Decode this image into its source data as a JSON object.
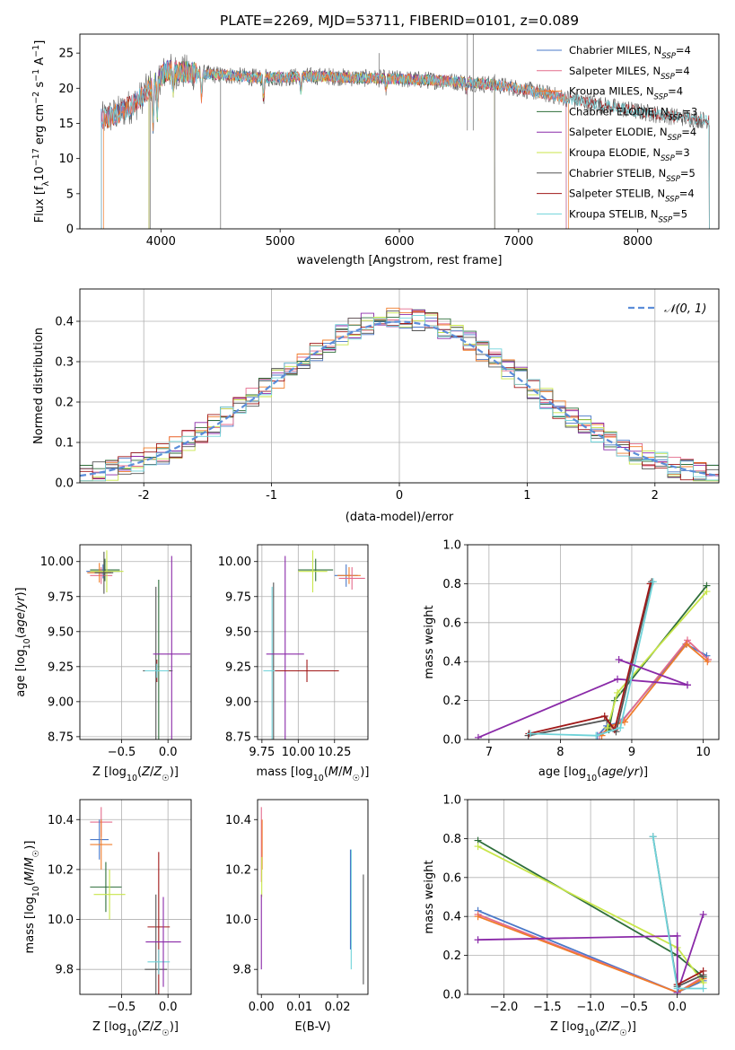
{
  "chart_data": [
    {
      "id": "spectrum",
      "type": "line",
      "title": "PLATE=2269, MJD=53711, FIBERID=0101, z=0.089",
      "xlabel": "wavelength [Angstrom, rest frame]",
      "ylabel_parts": [
        "Flux [f",
        "λ",
        "10",
        "−17",
        " erg cm",
        "−2",
        " s",
        "−1",
        " A",
        "−1",
        "]"
      ],
      "xlim": [
        3320,
        8680
      ],
      "ylim": [
        0,
        27.7
      ],
      "xticks": [
        4000,
        5000,
        6000,
        7000,
        8000
      ],
      "yticks": [
        0,
        5,
        10,
        15,
        20,
        25
      ],
      "grid": false,
      "legend_placement": "top-right",
      "continuum_shape": {
        "x": [
          3500,
          3650,
          3800,
          3950,
          4050,
          4200,
          4400,
          4600,
          4800,
          5000,
          5200,
          5400,
          5600,
          5800,
          6000,
          6200,
          6400,
          6600,
          6800,
          7000,
          7200,
          7400,
          7600,
          7800,
          8000,
          8200,
          8400,
          8550
        ],
        "y": [
          15.5,
          16.5,
          18.0,
          21.0,
          22.5,
          22.3,
          22.0,
          21.8,
          21.5,
          21.5,
          21.7,
          21.7,
          21.5,
          21.4,
          21.3,
          21.2,
          21.0,
          20.8,
          20.5,
          20.0,
          19.3,
          18.6,
          17.9,
          17.3,
          16.7,
          16.2,
          15.8,
          15.5
        ]
      },
      "series": [
        {
          "name": "Chabrier MILES, N",
          "sub": "SSP",
          "suffix": "=4",
          "color": "#4a78c8",
          "xmin": 3500,
          "xmax": 7400
        },
        {
          "name": "Salpeter MILES, N",
          "sub": "SSP",
          "suffix": "=4",
          "color": "#e46b8c",
          "xmin": 3500,
          "xmax": 7400
        },
        {
          "name": "Kroupa MILES, N",
          "sub": "SSP",
          "suffix": "=4",
          "color": "#f07c2a",
          "xmin": 3520,
          "xmax": 7420
        },
        {
          "name": "Chabrier ELODIE, N",
          "sub": "SSP",
          "suffix": "=3",
          "color": "#2e6e3a",
          "xmin": 3900,
          "xmax": 6800
        },
        {
          "name": "Salpeter ELODIE, N",
          "sub": "SSP",
          "suffix": "=4",
          "color": "#8a2aa8",
          "xmin": 3900,
          "xmax": 6800
        },
        {
          "name": "Kroupa ELODIE, N",
          "sub": "SSP",
          "suffix": "=3",
          "color": "#c8e64a",
          "xmin": 3900,
          "xmax": 6800
        },
        {
          "name": "Chabrier STELIB, N",
          "sub": "SSP",
          "suffix": "=5",
          "color": "#555555",
          "xmin": 3500,
          "xmax": 8600
        },
        {
          "name": "Salpeter STELIB, N",
          "sub": "SSP",
          "suffix": "=4",
          "color": "#a01818",
          "xmin": 3500,
          "xmax": 8600
        },
        {
          "name": "Kroupa STELIB, N",
          "sub": "SSP",
          "suffix": "=5",
          "color": "#6fd3d9",
          "xmin": 3500,
          "xmax": 8600
        }
      ]
    },
    {
      "id": "residuals",
      "type": "bar",
      "xlabel": "(data-model)/error",
      "ylabel": "Normed distribution",
      "xlim": [
        -2.5,
        2.5
      ],
      "ylim": [
        0,
        0.48
      ],
      "xticks": [
        -2,
        -1,
        0,
        1,
        2
      ],
      "yticks": [
        0.0,
        0.1,
        0.2,
        0.3,
        0.4
      ],
      "grid": true,
      "legend_placement": "top-right",
      "reference_curve": {
        "name": "𝒩(0, 1)",
        "mean": 0,
        "sigma": 1,
        "color": "#5b8dd9",
        "dashed": true
      },
      "bin_width": 0.1
    },
    {
      "id": "age_vs_Z",
      "type": "scatter",
      "xlabel": "Z [log10(Z/Z☉)]",
      "ylabel": "age  [log10(age/yr)]",
      "xlim": [
        -0.95,
        0.25
      ],
      "ylim": [
        8.73,
        10.12
      ],
      "xticks": [
        -0.5,
        0.0
      ],
      "xtick_labels": [
        "−0.5",
        "0.0"
      ],
      "yticks": [
        8.75,
        9.0,
        9.25,
        9.5,
        9.75,
        10.0
      ],
      "grid": true,
      "points": [
        {
          "x": -0.68,
          "y": 9.94,
          "xerr": 0.16,
          "yerr": 0.08,
          "color": "#2e6e3a"
        },
        {
          "x": -0.7,
          "y": 9.93,
          "xerr": 0.18,
          "yerr": 0.05,
          "color": "#4a78c8"
        },
        {
          "x": -0.72,
          "y": 9.9,
          "xerr": 0.12,
          "yerr": 0.06,
          "color": "#e46b8c"
        },
        {
          "x": -0.74,
          "y": 9.92,
          "xerr": 0.13,
          "yerr": 0.07,
          "color": "#f07c2a"
        },
        {
          "x": -0.66,
          "y": 9.93,
          "xerr": 0.18,
          "yerr": 0.15,
          "color": "#c8e64a"
        },
        {
          "x": -0.69,
          "y": 9.92,
          "xerr": 0.1,
          "yerr": 0.15,
          "color": "#555555"
        },
        {
          "x": -0.1,
          "y": 9.22,
          "xerr": 0.15,
          "yerr": 0.65,
          "color": "#2e6e3a"
        },
        {
          "x": -0.12,
          "y": 9.22,
          "xerr": 0.14,
          "yerr": 0.08,
          "color": "#a01818"
        },
        {
          "x": -0.13,
          "y": 9.22,
          "xerr": 0.14,
          "yerr": 0.6,
          "color": "#555555"
        },
        {
          "x": -0.12,
          "y": 9.22,
          "xerr": 0.13,
          "yerr": 0.05,
          "color": "#6fd3d9"
        },
        {
          "x": 0.04,
          "y": 9.34,
          "xerr": 0.2,
          "yerr": 0.7,
          "color": "#8a2aa8"
        }
      ]
    },
    {
      "id": "age_vs_mass",
      "type": "scatter",
      "xlabel": "mass [log10(M/M☉)]",
      "ylabel": "",
      "xlim": [
        9.72,
        10.48
      ],
      "ylim": [
        8.73,
        10.12
      ],
      "xticks": [
        9.75,
        10.0,
        10.25
      ],
      "yticks": [
        8.75,
        9.0,
        9.25,
        9.5,
        9.75,
        10.0
      ],
      "grid": true,
      "points": [
        {
          "x": 10.12,
          "y": 9.94,
          "xerr": 0.12,
          "yerr": 0.08,
          "color": "#2e6e3a"
        },
        {
          "x": 10.1,
          "y": 9.93,
          "xerr": 0.1,
          "yerr": 0.15,
          "color": "#c8e64a"
        },
        {
          "x": 10.33,
          "y": 9.9,
          "xerr": 0.08,
          "yerr": 0.08,
          "color": "#4a78c8"
        },
        {
          "x": 10.35,
          "y": 9.9,
          "xerr": 0.08,
          "yerr": 0.06,
          "color": "#f07c2a"
        },
        {
          "x": 10.37,
          "y": 9.88,
          "xerr": 0.09,
          "yerr": 0.08,
          "color": "#e46b8c"
        },
        {
          "x": 9.83,
          "y": 9.22,
          "xerr": 0.06,
          "yerr": 0.63,
          "color": "#555555"
        },
        {
          "x": 9.82,
          "y": 9.22,
          "xerr": 0.06,
          "yerr": 0.6,
          "color": "#6fd3d9"
        },
        {
          "x": 9.91,
          "y": 9.34,
          "xerr": 0.13,
          "yerr": 0.7,
          "color": "#8a2aa8"
        },
        {
          "x": 10.06,
          "y": 9.22,
          "xerr": 0.22,
          "yerr": 0.08,
          "color": "#a01818"
        }
      ]
    },
    {
      "id": "mass_weight_vs_age",
      "type": "line",
      "xlabel": "age  [log10(age/yr)]",
      "ylabel": "mass weight",
      "xlim": [
        6.7,
        10.22
      ],
      "ylim": [
        0,
        1
      ],
      "xticks": [
        7,
        8,
        9,
        10
      ],
      "yticks": [
        0.0,
        0.2,
        0.4,
        0.6,
        0.8,
        1.0
      ],
      "grid": true,
      "series": [
        {
          "color": "#4a78c8",
          "x": [
            8.52,
            8.65,
            8.85,
            9.76,
            10.05
          ],
          "y": [
            0.02,
            0.07,
            0.09,
            0.49,
            0.43
          ]
        },
        {
          "color": "#e46b8c",
          "x": [
            8.55,
            8.68,
            8.88,
            9.78,
            10.07
          ],
          "y": [
            0.02,
            0.06,
            0.1,
            0.51,
            0.41
          ]
        },
        {
          "color": "#f07c2a",
          "x": [
            8.58,
            8.7,
            8.9,
            9.77,
            10.06
          ],
          "y": [
            0.02,
            0.07,
            0.09,
            0.49,
            0.4
          ]
        },
        {
          "color": "#2e6e3a",
          "x": [
            8.68,
            8.76,
            10.05
          ],
          "y": [
            0.05,
            0.2,
            0.79
          ]
        },
        {
          "color": "#8a2aa8",
          "x": [
            6.85,
            8.8,
            9.78
          ],
          "y": [
            0.01,
            0.31,
            0.28
          ]
        },
        {
          "color": "#c8e64a",
          "x": [
            8.66,
            8.8,
            10.05
          ],
          "y": [
            0.06,
            0.24,
            0.76
          ]
        },
        {
          "color": "#555555",
          "x": [
            7.55,
            8.65,
            8.78,
            9.28
          ],
          "y": [
            0.02,
            0.1,
            0.04,
            0.81
          ]
        },
        {
          "color": "#a01818",
          "x": [
            7.56,
            8.62,
            8.76,
            9.26
          ],
          "y": [
            0.03,
            0.12,
            0.05,
            0.8
          ]
        },
        {
          "color": "#6fd3d9",
          "x": [
            7.58,
            8.5,
            8.84,
            9.3
          ],
          "y": [
            0.03,
            0.02,
            0.06,
            0.81
          ]
        },
        {
          "color": "#8a2aa8",
          "x": [
            8.82,
            9.78
          ],
          "y": [
            0.41,
            0.28
          ]
        }
      ]
    },
    {
      "id": "mass_vs_Z",
      "type": "scatter",
      "xlabel": "Z [log10(Z/Z☉)]",
      "ylabel": "mass [log10(M/M☉)]",
      "xlim": [
        -0.95,
        0.25
      ],
      "ylim": [
        9.7,
        10.48
      ],
      "xticks": [
        -0.5,
        0.0
      ],
      "xtick_labels": [
        "−0.5",
        "0.0"
      ],
      "yticks": [
        9.8,
        10.0,
        10.2,
        10.4
      ],
      "grid": true,
      "points": [
        {
          "x": -0.72,
          "y": 10.39,
          "xerr": 0.12,
          "yerr": 0.06,
          "color": "#e46b8c"
        },
        {
          "x": -0.74,
          "y": 10.32,
          "xerr": 0.1,
          "yerr": 0.08,
          "color": "#4a78c8"
        },
        {
          "x": -0.72,
          "y": 10.3,
          "xerr": 0.12,
          "yerr": 0.1,
          "color": "#f07c2a"
        },
        {
          "x": -0.67,
          "y": 10.13,
          "xerr": 0.17,
          "yerr": 0.1,
          "color": "#2e6e3a"
        },
        {
          "x": -0.63,
          "y": 10.1,
          "xerr": 0.17,
          "yerr": 0.1,
          "color": "#c8e64a"
        },
        {
          "x": -0.1,
          "y": 9.97,
          "xerr": 0.12,
          "yerr": 0.3,
          "color": "#a01818"
        },
        {
          "x": -0.13,
          "y": 9.8,
          "xerr": 0.12,
          "yerr": 0.3,
          "color": "#555555"
        },
        {
          "x": -0.1,
          "y": 9.83,
          "xerr": 0.12,
          "yerr": 0.05,
          "color": "#6fd3d9"
        },
        {
          "x": -0.05,
          "y": 9.91,
          "xerr": 0.19,
          "yerr": 0.18,
          "color": "#8a2aa8"
        }
      ]
    },
    {
      "id": "mass_vs_EBV",
      "type": "scatter",
      "xlabel": "E(B-V)",
      "ylabel": "",
      "xlim": [
        -0.001,
        0.028
      ],
      "ylim": [
        9.7,
        10.48
      ],
      "xticks": [
        0.0,
        0.01,
        0.02
      ],
      "xtick_labels": [
        "0.00",
        "0.01",
        "0.02"
      ],
      "yticks": [
        9.8,
        10.0,
        10.2,
        10.4
      ],
      "grid": false,
      "points": [
        {
          "x": 0.0,
          "y": 10.3,
          "xerr": 0,
          "yerr": 0.15,
          "color": "#e46b8c"
        },
        {
          "x": 0.0002,
          "y": 10.3,
          "xerr": 0,
          "yerr": 0.1,
          "color": "#f07c2a"
        },
        {
          "x": 0.0001,
          "y": 10.17,
          "xerr": 0,
          "yerr": 0.08,
          "color": "#c8e64a"
        },
        {
          "x": 0.0,
          "y": 9.95,
          "xerr": 0,
          "yerr": 0.15,
          "color": "#8a2aa8"
        },
        {
          "x": 0.0236,
          "y": 10.04,
          "xerr": 0,
          "yerr": 0.24,
          "color": "#6fd3d9"
        },
        {
          "x": 0.0234,
          "y": 10.08,
          "xerr": 0,
          "yerr": 0.2,
          "color": "#4a78c8"
        },
        {
          "x": 0.0268,
          "y": 9.96,
          "xerr": 0,
          "yerr": 0.22,
          "color": "#555555"
        }
      ]
    },
    {
      "id": "mass_weight_vs_Z",
      "type": "line",
      "xlabel": "Z [log10(Z/Z☉)]",
      "ylabel": "mass weight",
      "xlim": [
        -2.42,
        0.48
      ],
      "ylim": [
        0,
        1
      ],
      "xticks": [
        -2.0,
        -1.5,
        -1.0,
        -0.5,
        0.0
      ],
      "xtick_labels": [
        "−2.0",
        "−1.5",
        "−1.0",
        "−0.5",
        "0.0"
      ],
      "yticks": [
        0.0,
        0.2,
        0.4,
        0.6,
        0.8,
        1.0
      ],
      "grid": true,
      "series": [
        {
          "color": "#4a78c8",
          "x": [
            -2.3,
            0.0,
            0.3
          ],
          "y": [
            0.43,
            0.01,
            0.07
          ]
        },
        {
          "color": "#e46b8c",
          "x": [
            -2.3,
            0.0,
            0.3
          ],
          "y": [
            0.41,
            0.01,
            0.09
          ]
        },
        {
          "color": "#f07c2a",
          "x": [
            -2.3,
            0.0,
            0.3
          ],
          "y": [
            0.4,
            0.01,
            0.08
          ]
        },
        {
          "color": "#2e6e3a",
          "x": [
            -2.3,
            0.0,
            0.3
          ],
          "y": [
            0.79,
            0.2,
            0.09
          ]
        },
        {
          "color": "#c8e64a",
          "x": [
            -2.3,
            0.0,
            0.3
          ],
          "y": [
            0.76,
            0.24,
            0.06
          ]
        },
        {
          "color": "#8a2aa8",
          "x": [
            -2.3,
            0.0,
            0.0,
            0.3
          ],
          "y": [
            0.28,
            0.3,
            0.01,
            0.41
          ]
        },
        {
          "color": "#555555",
          "x": [
            -0.28,
            0.0,
            0.3
          ],
          "y": [
            0.81,
            0.04,
            0.1
          ]
        },
        {
          "color": "#a01818",
          "x": [
            0.0,
            0.3
          ],
          "y": [
            0.05,
            0.12
          ]
        },
        {
          "color": "#6fd3d9",
          "x": [
            -0.28,
            0.0,
            0.3
          ],
          "y": [
            0.81,
            0.03,
            0.03
          ]
        }
      ]
    }
  ]
}
